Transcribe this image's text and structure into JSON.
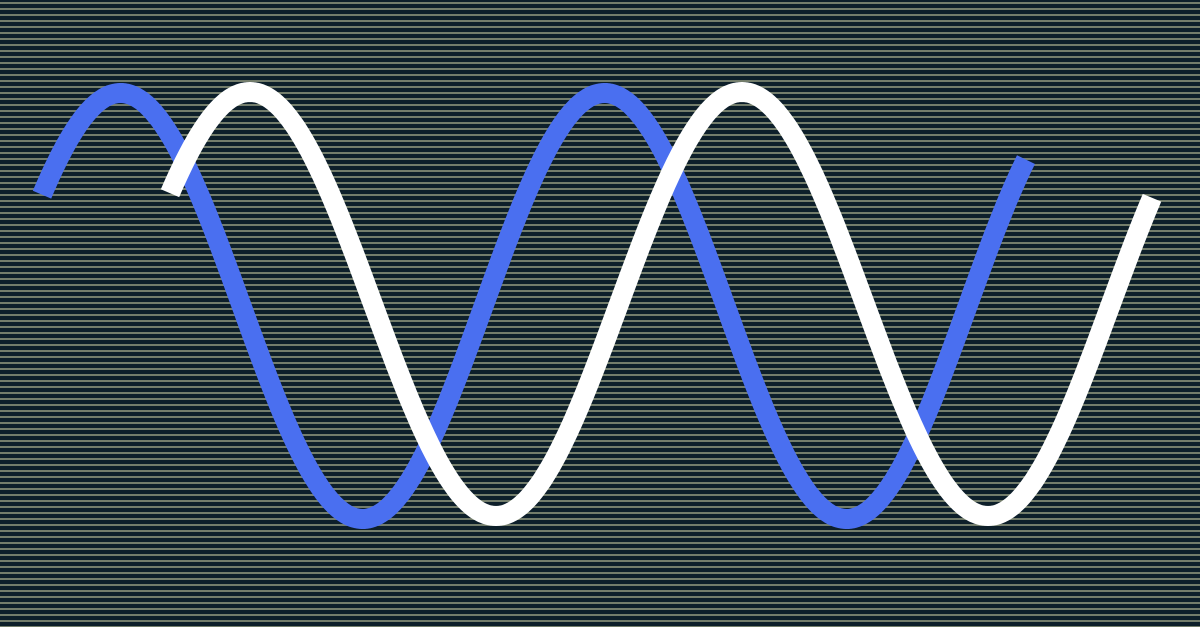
{
  "background": {
    "base_color": "#0d1f2a",
    "stripe_color": "#c7c9a0",
    "texture": "horizontal-scanlines"
  },
  "waves": [
    {
      "name": "",
      "color": "#4a6ff0",
      "shape": "sine",
      "phase_order": 1
    },
    {
      "name": "",
      "color": "#ffffff",
      "shape": "sine",
      "phase_order": 2
    }
  ]
}
